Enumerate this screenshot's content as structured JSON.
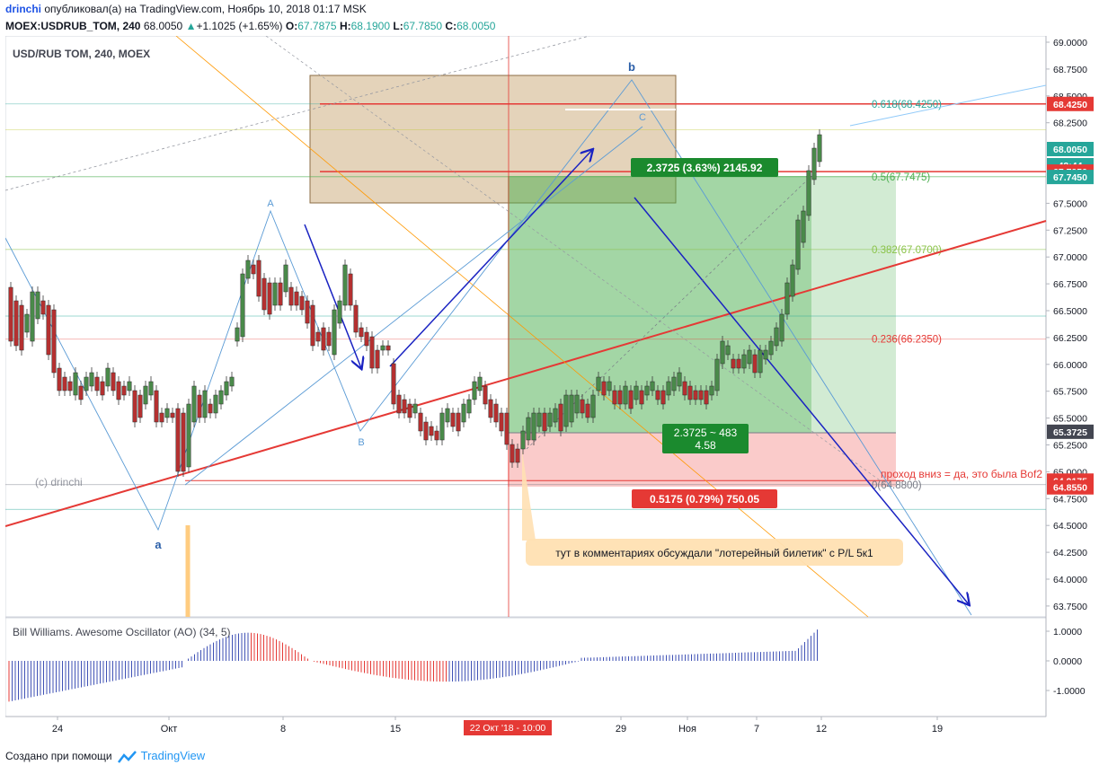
{
  "header": {
    "author": "drinchi",
    "published_text": "опубликовал(а) на TradingView.com, Ноябрь 10, 2018 01:17 MSK",
    "symbol_line": "MOEX:USDRUB_TOM, 240",
    "last": "68.0050",
    "change_arrow": "▲",
    "change": "+1.1025 (+1.65%)",
    "ohlc": {
      "O": "67.7875",
      "H": "68.1900",
      "L": "67.7850",
      "C": "68.0050"
    },
    "o_label": "O:",
    "h_label": "H:",
    "l_label": "L:",
    "c_label": "C:"
  },
  "chart_data": {
    "type": "candlestick",
    "title": "USD/RUB TOM, 240, MOEX",
    "watermark": "(c) drinchi",
    "ylim": [
      63.5,
      69.0
    ],
    "y_ticks": [
      "69.0000",
      "68.7500",
      "68.5000",
      "68.2500",
      "67.5000",
      "67.2500",
      "67.0000",
      "66.7500",
      "66.5000",
      "66.2500",
      "66.0000",
      "65.7500",
      "65.5000",
      "65.2500",
      "65.0000",
      "64.7500",
      "64.5000",
      "64.2500",
      "64.0000",
      "63.7500"
    ],
    "x_ticks": [
      "24",
      "Окт",
      "8",
      "15",
      "29",
      "Ноя",
      "7",
      "12",
      "19"
    ],
    "crosshair_date": "22 Окт '18 - 10:00",
    "price_tags": [
      {
        "label": "68.4250",
        "bg": "#e53935"
      },
      {
        "label": "68.0050",
        "bg": "#26a69a"
      },
      {
        "label": "42:44",
        "bg": "#26a69a"
      },
      {
        "label": "67.7950",
        "bg": "#e53935"
      },
      {
        "label": "67.7450",
        "bg": "#26a69a"
      },
      {
        "label": "65.3725",
        "bg": "#434651"
      },
      {
        "label": "64.9175",
        "bg": "#e53935"
      },
      {
        "label": "64.8550",
        "bg": "#e53935"
      }
    ],
    "fib_levels": [
      {
        "label": "0.618(68.4250)",
        "color": "#26a69a"
      },
      {
        "label": "0.5(67.7475)",
        "color": "#4caf50"
      },
      {
        "label": "0.382(67.0700)",
        "color": "#8bc34a"
      },
      {
        "label": "0.236(66.2350)",
        "color": "#e53935"
      },
      {
        "label": "0(64.8800)",
        "color": "#787b86"
      }
    ],
    "wave_labels": [
      "A",
      "B",
      "C",
      "a",
      "b"
    ],
    "position": {
      "profit": "2.3725 (3.63%) 2145.92",
      "center_line1": "2.3725 ~ 483",
      "center_line2": "4.58",
      "loss": "0.5175 (0.79%) 750.05"
    },
    "annotations": [
      "проход вниз = да, это была Bof2",
      "тут в комментариях обсуждали \"лотерейный билетик\" с P/L 5к1"
    ],
    "indicator": {
      "title": "Bill Williams. Awesome Oscillator (AO) (34, 5)",
      "ylim": [
        -1.5,
        1.5
      ],
      "y_ticks": [
        "1.0000",
        "0.0000",
        "-1.0000"
      ]
    }
  },
  "footer": {
    "created_with": "Создано при помощи",
    "brand": "TradingView"
  }
}
